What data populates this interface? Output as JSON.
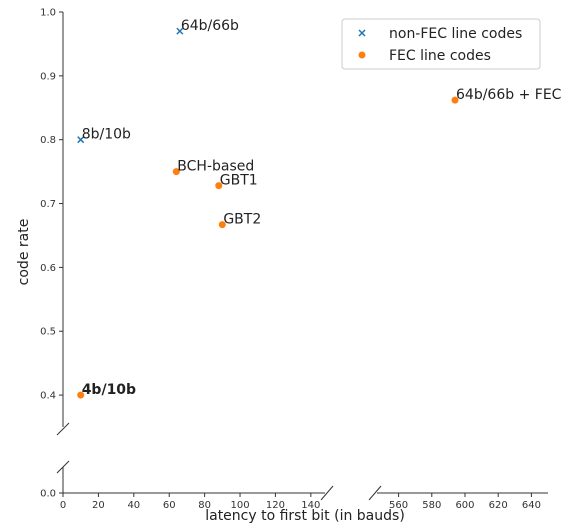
{
  "chart_data": {
    "type": "scatter",
    "xlabel": "latency to first bit (in bauds)",
    "ylabel": "code rate",
    "x_segments": [
      {
        "range": [
          0,
          148
        ],
        "ticks": [
          0,
          20,
          40,
          60,
          80,
          100,
          120,
          140
        ]
      },
      {
        "range": [
          547,
          650
        ],
        "ticks": [
          560,
          580,
          600,
          620,
          640
        ]
      }
    ],
    "y_segments": [
      {
        "range": [
          0.35,
          1.0
        ],
        "ticks": [
          0.4,
          0.5,
          0.6,
          0.7,
          0.8,
          0.9,
          1.0
        ]
      },
      {
        "range": [
          0.0,
          0.0
        ],
        "ticks": [
          0.0
        ]
      }
    ],
    "series": [
      {
        "name": "non-FEC line codes",
        "marker": "x",
        "color": "#1f77b4",
        "points": [
          {
            "x": 66,
            "y": 0.97,
            "label": "64b/66b",
            "bold": false
          },
          {
            "x": 10,
            "y": 0.8,
            "label": "8b/10b",
            "bold": false
          }
        ]
      },
      {
        "name": "FEC line codes",
        "marker": "o",
        "color": "#ff7f0e",
        "points": [
          {
            "x": 64,
            "y": 0.75,
            "label": "BCH-based",
            "bold": false
          },
          {
            "x": 88,
            "y": 0.728,
            "label": "GBT1",
            "bold": false
          },
          {
            "x": 90,
            "y": 0.667,
            "label": "GBT2",
            "bold": false
          },
          {
            "x": 10,
            "y": 0.4,
            "label": "4b/10b",
            "bold": true
          },
          {
            "x": 594,
            "y": 0.862,
            "label": "64b/66b + FEC",
            "bold": false
          }
        ]
      }
    ],
    "legend_position": "top-right",
    "grid": false
  }
}
